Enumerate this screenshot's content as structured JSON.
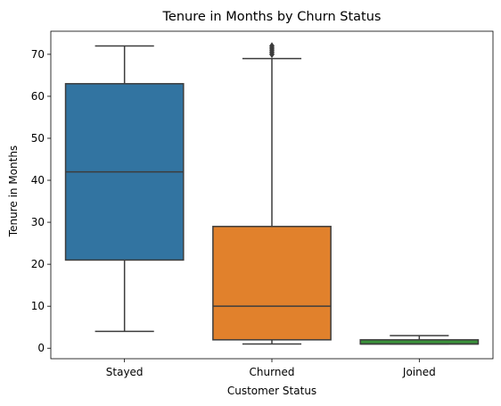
{
  "chart_data": {
    "type": "box",
    "title": "Tenure in Months by Churn Status",
    "xlabel": "Customer Status",
    "ylabel": "Tenure in Months",
    "ylim": [
      -2.5,
      75.5
    ],
    "yticks": [
      0,
      10,
      20,
      30,
      40,
      50,
      60,
      70
    ],
    "grid": false,
    "legend": "none",
    "categories": [
      "Stayed",
      "Churned",
      "Joined"
    ],
    "series": [
      {
        "category": "Stayed",
        "whisker_low": 4,
        "q1": 21,
        "median": 42,
        "q3": 63,
        "whisker_high": 72,
        "outliers": [],
        "color": "#3274a1"
      },
      {
        "category": "Churned",
        "whisker_low": 1,
        "q1": 2,
        "median": 10,
        "q3": 29,
        "whisker_high": 69,
        "outliers": [
          70,
          70.5,
          71,
          71.5,
          72
        ],
        "color": "#e1812c"
      },
      {
        "category": "Joined",
        "whisker_low": 1,
        "q1": 1,
        "median": 1,
        "q3": 2,
        "whisker_high": 3,
        "outliers": [],
        "color": "#3a923a"
      }
    ],
    "line_color": "#3d3d3d"
  }
}
